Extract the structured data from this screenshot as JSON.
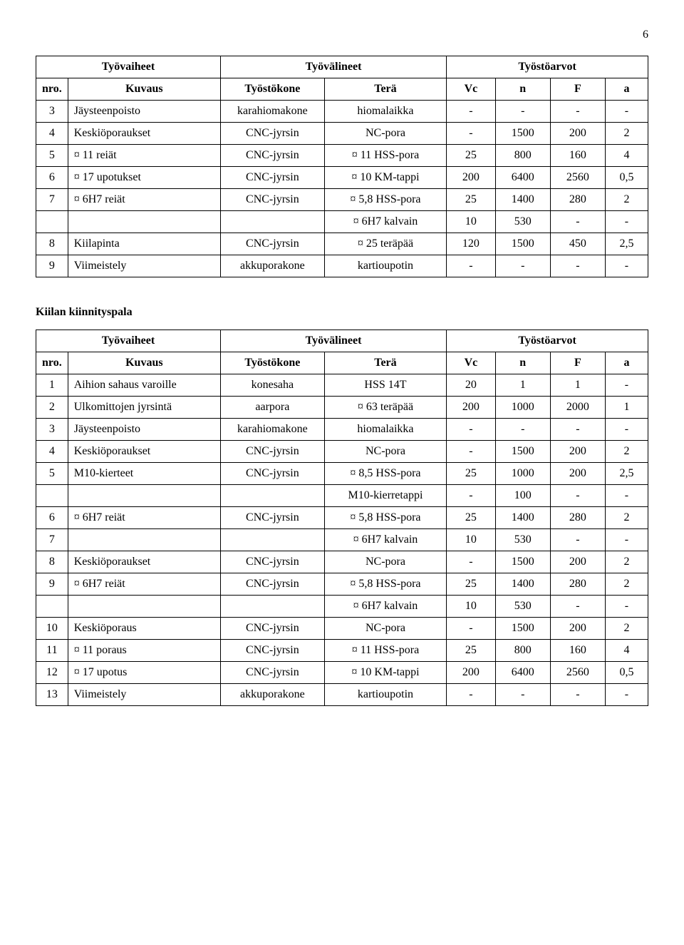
{
  "page_number": "6",
  "table1": {
    "headers": {
      "group1": "Työvaiheet",
      "group2": "Työvälineet",
      "group3": "Työstöarvot",
      "nro": "nro.",
      "kuvaus": "Kuvaus",
      "tyostokone": "Työstökone",
      "tera": "Terä",
      "vc": "Vc",
      "n": "n",
      "F": "F",
      "a": "a"
    },
    "rows": [
      {
        "nro": "3",
        "kuvaus": "Jäysteenpoisto",
        "tyostokone": "karahiomakone",
        "tera": "hiomalaikka",
        "vc": "-",
        "n": "-",
        "F": "-",
        "a": "-"
      },
      {
        "nro": "4",
        "kuvaus": "Keskiöporaukset",
        "tyostokone": "CNC-jyrsin",
        "tera": "NC-pora",
        "vc": "-",
        "n": "1500",
        "F": "200",
        "a": "2"
      },
      {
        "nro": "5",
        "kuvaus": "¤ 11 reiät",
        "tyostokone": "CNC-jyrsin",
        "tera": "¤ 11 HSS-pora",
        "vc": "25",
        "n": "800",
        "F": "160",
        "a": "4"
      },
      {
        "nro": "6",
        "kuvaus": "¤ 17 upotukset",
        "tyostokone": "CNC-jyrsin",
        "tera": "¤ 10 KM-tappi",
        "vc": "200",
        "n": "6400",
        "F": "2560",
        "a": "0,5"
      },
      {
        "nro": "7",
        "kuvaus": "¤ 6H7 reiät",
        "tyostokone": "CNC-jyrsin",
        "tera": "¤ 5,8 HSS-pora",
        "vc": "25",
        "n": "1400",
        "F": "280",
        "a": "2"
      },
      {
        "nro": "",
        "kuvaus": "",
        "tyostokone": "",
        "tera": "¤ 6H7 kalvain",
        "vc": "10",
        "n": "530",
        "F": "-",
        "a": "-"
      },
      {
        "nro": "8",
        "kuvaus": "Kiilapinta",
        "tyostokone": "CNC-jyrsin",
        "tera": "¤ 25 teräpää",
        "vc": "120",
        "n": "1500",
        "F": "450",
        "a": "2,5"
      },
      {
        "nro": "9",
        "kuvaus": "Viimeistely",
        "tyostokone": "akkuporakone",
        "tera": "kartioupotin",
        "vc": "-",
        "n": "-",
        "F": "-",
        "a": "-"
      }
    ]
  },
  "subtitle": "Kiilan kiinnityspala",
  "table2": {
    "headers": {
      "group1": "Työvaiheet",
      "group2": "Työvälineet",
      "group3": "Työstöarvot",
      "nro": "nro.",
      "kuvaus": "Kuvaus",
      "tyostokone": "Työstökone",
      "tera": "Terä",
      "vc": "Vc",
      "n": "n",
      "F": "F",
      "a": "a"
    },
    "rows": [
      {
        "nro": "1",
        "kuvaus": "Aihion sahaus varoille",
        "tyostokone": "konesaha",
        "tera": "HSS 14T",
        "vc": "20",
        "n": "1",
        "F": "1",
        "a": "-"
      },
      {
        "nro": "2",
        "kuvaus": "Ulkomittojen jyrsintä",
        "tyostokone": "aarpora",
        "tera": "¤ 63 teräpää",
        "vc": "200",
        "n": "1000",
        "F": "2000",
        "a": "1"
      },
      {
        "nro": "3",
        "kuvaus": "Jäysteenpoisto",
        "tyostokone": "karahiomakone",
        "tera": "hiomalaikka",
        "vc": "-",
        "n": "-",
        "F": "-",
        "a": "-"
      },
      {
        "nro": "4",
        "kuvaus": "Keskiöporaukset",
        "tyostokone": "CNC-jyrsin",
        "tera": "NC-pora",
        "vc": "-",
        "n": "1500",
        "F": "200",
        "a": "2"
      },
      {
        "nro": "5",
        "kuvaus": "M10-kierteet",
        "tyostokone": "CNC-jyrsin",
        "tera": "¤ 8,5 HSS-pora",
        "vc": "25",
        "n": "1000",
        "F": "200",
        "a": "2,5"
      },
      {
        "nro": "",
        "kuvaus": "",
        "tyostokone": "",
        "tera": "M10-kierretappi",
        "vc": "-",
        "n": "100",
        "F": "-",
        "a": "-"
      },
      {
        "nro": "6",
        "kuvaus": "¤ 6H7 reiät",
        "tyostokone": "CNC-jyrsin",
        "tera": "¤ 5,8 HSS-pora",
        "vc": "25",
        "n": "1400",
        "F": "280",
        "a": "2"
      },
      {
        "nro": "7",
        "kuvaus": "",
        "tyostokone": "",
        "tera": "¤ 6H7 kalvain",
        "vc": "10",
        "n": "530",
        "F": "-",
        "a": "-"
      },
      {
        "nro": "8",
        "kuvaus": "Keskiöporaukset",
        "tyostokone": "CNC-jyrsin",
        "tera": "NC-pora",
        "vc": "-",
        "n": "1500",
        "F": "200",
        "a": "2"
      },
      {
        "nro": "9",
        "kuvaus": "¤ 6H7 reiät",
        "tyostokone": "CNC-jyrsin",
        "tera": "¤ 5,8 HSS-pora",
        "vc": "25",
        "n": "1400",
        "F": "280",
        "a": "2"
      },
      {
        "nro": "",
        "kuvaus": "",
        "tyostokone": "",
        "tera": "¤ 6H7 kalvain",
        "vc": "10",
        "n": "530",
        "F": "-",
        "a": "-"
      },
      {
        "nro": "10",
        "kuvaus": "Keskiöporaus",
        "tyostokone": "CNC-jyrsin",
        "tera": "NC-pora",
        "vc": "-",
        "n": "1500",
        "F": "200",
        "a": "2"
      },
      {
        "nro": "11",
        "kuvaus": "¤ 11 poraus",
        "tyostokone": "CNC-jyrsin",
        "tera": "¤ 11 HSS-pora",
        "vc": "25",
        "n": "800",
        "F": "160",
        "a": "4"
      },
      {
        "nro": "12",
        "kuvaus": "¤ 17 upotus",
        "tyostokone": "CNC-jyrsin",
        "tera": "¤ 10 KM-tappi",
        "vc": "200",
        "n": "6400",
        "F": "2560",
        "a": "0,5"
      },
      {
        "nro": "13",
        "kuvaus": "Viimeistely",
        "tyostokone": "akkuporakone",
        "tera": "kartioupotin",
        "vc": "-",
        "n": "-",
        "F": "-",
        "a": "-"
      }
    ]
  }
}
